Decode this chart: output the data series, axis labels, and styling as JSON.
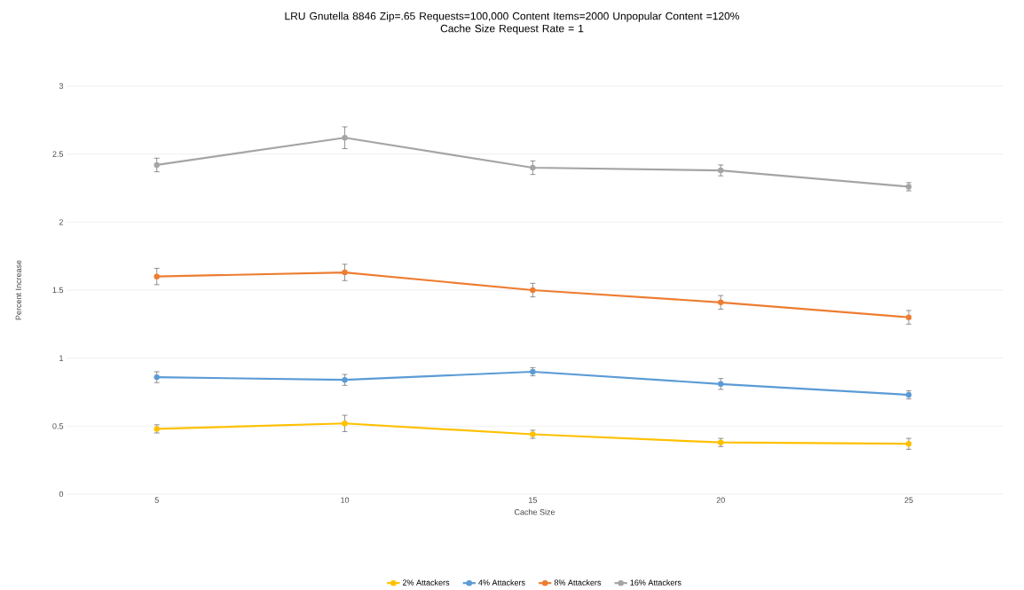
{
  "chart_data": {
    "type": "line",
    "title": "LRU Gnutella 8846 Zip=.65 Requests=100,000 Content Items=2000 Unpopular Content =120%",
    "subtitle": "Cache Size Request Rate = 1",
    "xlabel": "Cache Size",
    "ylabel": "Percent Increase",
    "categories": [
      "5",
      "10",
      "15",
      "20",
      "25"
    ],
    "series": [
      {
        "name": "2% Attackers",
        "color": "#ffc000",
        "values": [
          0.48,
          0.52,
          0.44,
          0.38,
          0.37
        ],
        "errors": [
          0.03,
          0.06,
          0.03,
          0.03,
          0.04
        ]
      },
      {
        "name": "4% Attackers",
        "color": "#5b9bd5",
        "values": [
          0.86,
          0.84,
          0.9,
          0.81,
          0.73
        ],
        "errors": [
          0.04,
          0.04,
          0.03,
          0.04,
          0.03
        ]
      },
      {
        "name": "8% Attackers",
        "color": "#ed7d31",
        "values": [
          1.6,
          1.63,
          1.5,
          1.41,
          1.3
        ],
        "errors": [
          0.06,
          0.06,
          0.05,
          0.05,
          0.05
        ]
      },
      {
        "name": "16% Attackers",
        "color": "#a5a5a5",
        "values": [
          2.42,
          2.62,
          2.4,
          2.38,
          2.26
        ],
        "errors": [
          0.05,
          0.08,
          0.05,
          0.04,
          0.03
        ]
      }
    ],
    "ylim": [
      0,
      3
    ],
    "yticks": [
      0,
      0.5,
      1,
      1.5,
      2,
      2.5,
      3
    ],
    "grid": "y",
    "legend": "bottom",
    "marker": "circle",
    "line_style": "solid"
  }
}
